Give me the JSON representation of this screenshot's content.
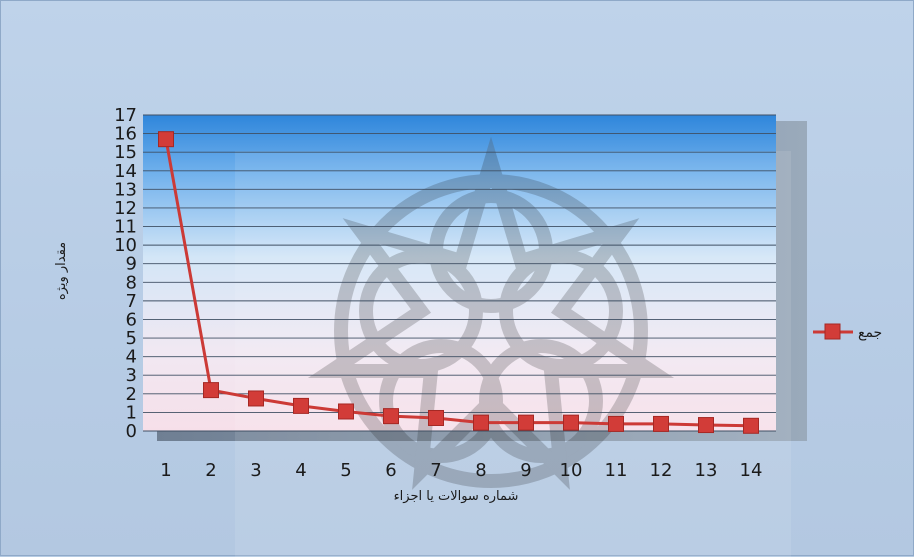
{
  "chart_data": {
    "type": "line",
    "categories": [
      "1",
      "2",
      "3",
      "4",
      "5",
      "6",
      "7",
      "8",
      "9",
      "10",
      "11",
      "12",
      "13",
      "14"
    ],
    "series": [
      {
        "name": "جمع",
        "values": [
          15.7,
          2.2,
          1.75,
          1.35,
          1.05,
          0.8,
          0.7,
          0.45,
          0.45,
          0.45,
          0.38,
          0.38,
          0.32,
          0.28
        ]
      }
    ],
    "xlabel": "شماره سوالات یا اجزاء",
    "ylabel": "مقدار ویژه",
    "ylim": [
      0,
      17
    ],
    "yticks": [
      "0",
      "1",
      "2",
      "3",
      "4",
      "5",
      "6",
      "7",
      "8",
      "9",
      "10",
      "11",
      "12",
      "13",
      "14",
      "15",
      "16",
      "17"
    ],
    "grid": true,
    "legend": "right",
    "colors": {
      "line": "#cc3a36",
      "marker": "#d23c38"
    }
  }
}
